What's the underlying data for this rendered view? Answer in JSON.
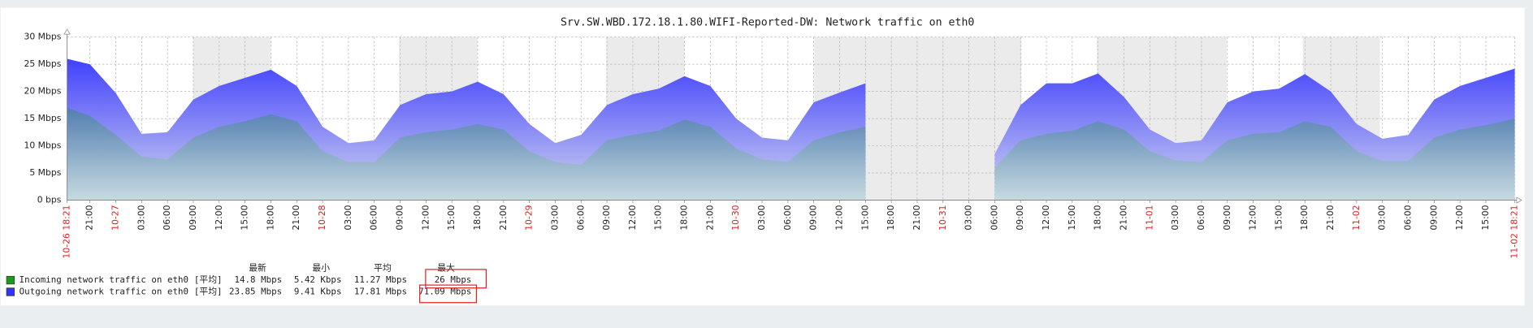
{
  "chart_data": {
    "type": "area",
    "title": "Srv.SW.WBD.172.18.1.80.WIFI-Reported-DW: Network traffic on eth0",
    "categories": [
      "10-26 18:21",
      "21:00",
      "10-27",
      "03:00",
      "06:00",
      "09:00",
      "12:00",
      "15:00",
      "18:00",
      "21:00",
      "10-28",
      "03:00",
      "06:00",
      "09:00",
      "12:00",
      "15:00",
      "18:00",
      "21:00",
      "10-29",
      "03:00",
      "06:00",
      "09:00",
      "12:00",
      "15:00",
      "18:00",
      "21:00",
      "10-30",
      "03:00",
      "06:00",
      "09:00",
      "12:00",
      "15:00",
      "18:00",
      "21:00",
      "10-31",
      "03:00",
      "06:00",
      "09:00",
      "12:00",
      "15:00",
      "18:00",
      "21:00",
      "11-01",
      "03:00",
      "06:00",
      "09:00",
      "12:00",
      "15:00",
      "18:00",
      "21:00",
      "11-02",
      "03:00",
      "06:00",
      "09:00",
      "12:00",
      "15:00",
      "11-02 18:21"
    ],
    "series": [
      {
        "name": "Outgoing network traffic on eth0",
        "color": "#3333ff",
        "func": "[平均]",
        "last": "23.85 Mbps",
        "min": "9.41 Kbps",
        "avg": "17.81 Mbps",
        "max": "71.09 Mbps",
        "values": [
          26,
          25,
          19.7,
          12.2,
          12.5,
          18.5,
          21,
          22.5,
          24,
          21,
          13.5,
          10.5,
          11,
          17.5,
          19.5,
          20,
          21.8,
          19.5,
          14,
          10.5,
          12,
          17.5,
          19.5,
          20.5,
          22.8,
          21,
          15,
          11.5,
          11,
          18,
          19.8,
          21.5,
          null,
          null,
          null,
          null,
          8.5,
          17.5,
          21.5,
          21.5,
          23.3,
          19,
          13,
          10.5,
          11,
          18,
          20,
          20.5,
          23.2,
          20,
          14,
          11.3,
          12,
          18.5,
          21,
          22.5,
          24.2
        ]
      },
      {
        "name": "Incoming network traffic on eth0",
        "color": "#1a9c1a",
        "func": "[平均]",
        "last": "14.8 Mbps",
        "min": "5.42 Kbps",
        "avg": "11.27 Mbps",
        "max": "26 Mbps",
        "values": [
          17,
          15.5,
          12,
          8,
          7.5,
          11.5,
          13.5,
          14.5,
          15.8,
          14.5,
          9,
          7,
          7,
          11.5,
          12.5,
          13,
          14,
          13,
          9,
          7,
          6.5,
          11,
          12,
          12.8,
          14.8,
          13.5,
          9.5,
          7.5,
          7,
          11,
          12.5,
          13.5,
          null,
          null,
          null,
          null,
          6,
          11,
          12.2,
          12.8,
          14.5,
          13,
          9,
          7.3,
          7,
          11,
          12.2,
          12.5,
          14.5,
          13.5,
          9,
          7.2,
          7.2,
          11.5,
          13,
          13.8,
          15
        ]
      }
    ],
    "legend_headers": [
      "最新",
      "最小",
      "平均",
      "最大"
    ],
    "ylim": [
      0,
      30
    ],
    "yticks": [
      {
        "value": 0,
        "label": "0 bps"
      },
      {
        "value": 5,
        "label": "5 Mbps"
      },
      {
        "value": 10,
        "label": "10 Mbps"
      },
      {
        "value": 15,
        "label": "15 Mbps"
      },
      {
        "value": 20,
        "label": "20 Mbps"
      },
      {
        "value": 25,
        "label": "25 Mbps"
      },
      {
        "value": 30,
        "label": "30 Mbps"
      }
    ],
    "grid": true
  }
}
